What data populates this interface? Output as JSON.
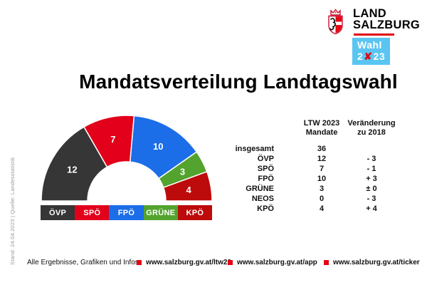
{
  "brand": {
    "logo_line1": "LAND",
    "logo_line2": "SALZBURG",
    "badge": {
      "prefix": "Wahl 2",
      "x_mark": "✘",
      "suffix": "23"
    },
    "red": "#e30613",
    "light_blue": "#5bc5f2"
  },
  "sidebar_note": "Stand: 24.04.2023 | Quelle: Landesstatistik",
  "title": "Mandatsverteilung Landtagswahl",
  "chart_data": {
    "type": "pie",
    "variant": "half-donut",
    "title": "Mandatsverteilung Landtagswahl",
    "categories": [
      "ÖVP",
      "SPÖ",
      "FPÖ",
      "GRÜNE",
      "KPÖ"
    ],
    "values": [
      12,
      7,
      10,
      3,
      4
    ],
    "colors": [
      "#363636",
      "#e2001a",
      "#1c6de8",
      "#53a32e",
      "#bd0a0a"
    ],
    "total": 36,
    "legend_position": "bottom"
  },
  "table": {
    "col1_header": "LTW 2023\nMandate",
    "col2_header": "Veränderung\nzu 2018",
    "rows": [
      {
        "label": "insgesamt",
        "mandate": "36",
        "change": ""
      },
      {
        "label": "ÖVP",
        "mandate": "12",
        "change": "- 3"
      },
      {
        "label": "SPÖ",
        "mandate": "7",
        "change": "- 1"
      },
      {
        "label": "FPÖ",
        "mandate": "10",
        "change": "+ 3"
      },
      {
        "label": "GRÜNE",
        "mandate": "3",
        "change": "± 0"
      },
      {
        "label": "NEOS",
        "mandate": "0",
        "change": "- 3"
      },
      {
        "label": "KPÖ",
        "mandate": "4",
        "change": "+ 4"
      }
    ]
  },
  "footer": {
    "label": "Alle Ergebnisse, Grafiken und Infos:",
    "links": [
      "www.salzburg.gv.at/ltw23",
      "www.salzburg.gv.at/app",
      "www.salzburg.gv.at/ticker"
    ]
  }
}
